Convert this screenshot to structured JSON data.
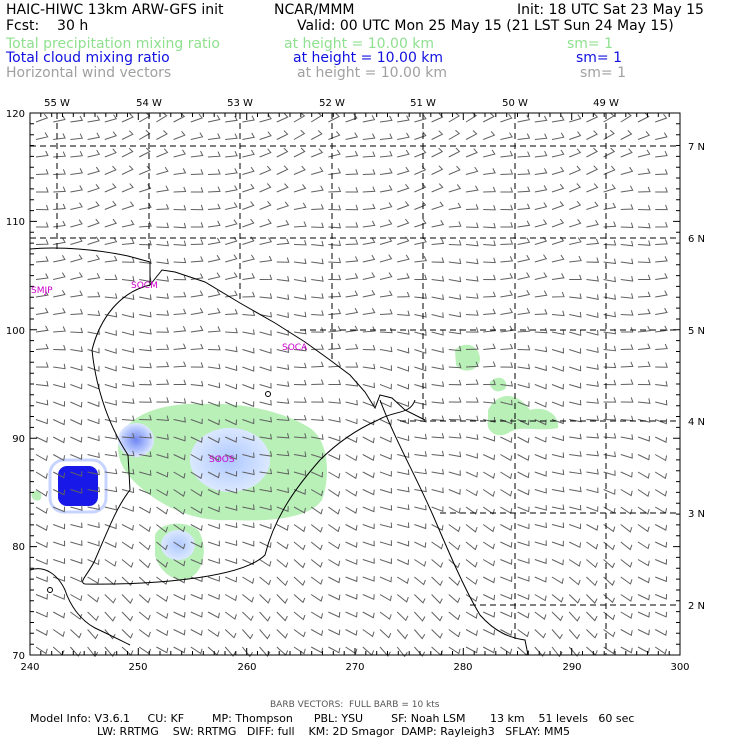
{
  "header": {
    "model": "HAIC-HIWC 13km ARW-GFS init",
    "org": "NCAR/MMM",
    "init": "Init: 18 UTC Sat 23 May 15",
    "fcst": "Fcst:    30 h",
    "valid": "Valid: 00 UTC Mon 25 May 15 (21 LST Sun 24 May 15)",
    "fields": [
      {
        "name": "Total precipitation mixing ratio",
        "level": "at height = 10.00 km",
        "sm": "sm= 1",
        "color": "#8fe08f"
      },
      {
        "name": "Total cloud mixing ratio",
        "level": "at height = 10.00 km",
        "sm": "sm= 1",
        "color": "#1010e0"
      },
      {
        "name": "Horizontal wind vectors",
        "level": "at height = 10.00 km",
        "sm": "sm= 1",
        "color": "#a0a0a0"
      }
    ]
  },
  "map": {
    "lon_labels": [
      "55 W",
      "54 W",
      "53 W",
      "52 W",
      "51 W",
      "50 W",
      "49 W"
    ],
    "lat_labels": [
      "7 N",
      "6 N",
      "5 N",
      "4 N",
      "3 N",
      "2 N"
    ],
    "x_ticks": [
      "240",
      "250",
      "260",
      "270",
      "280",
      "290",
      "300"
    ],
    "y_ticks": [
      "120",
      "110",
      "100",
      "90",
      "80",
      "70"
    ],
    "stations": [
      "SMJP",
      "SOCM",
      "SOCA",
      "SOOS"
    ],
    "colors": {
      "precip": "#b8f0b8",
      "cloud_light": "#cfe2ff",
      "cloud_dark": "#1818e8",
      "barb": "#606060",
      "grid": "#000000"
    }
  },
  "footer": {
    "barb": "BARB VECTORS:  FULL BARB = 10 kts",
    "line1": "Model Info: V3.6.1     CU: KF        MP: Thompson      PBL: YSU        SF: Noah LSM       13 km    51 levels   60 sec",
    "line2": "LW: RRTMG    SW: RRTMG   DIFF: full    KM: 2D Smagor  DAMP: Rayleigh3   SFLAY: MM5"
  }
}
